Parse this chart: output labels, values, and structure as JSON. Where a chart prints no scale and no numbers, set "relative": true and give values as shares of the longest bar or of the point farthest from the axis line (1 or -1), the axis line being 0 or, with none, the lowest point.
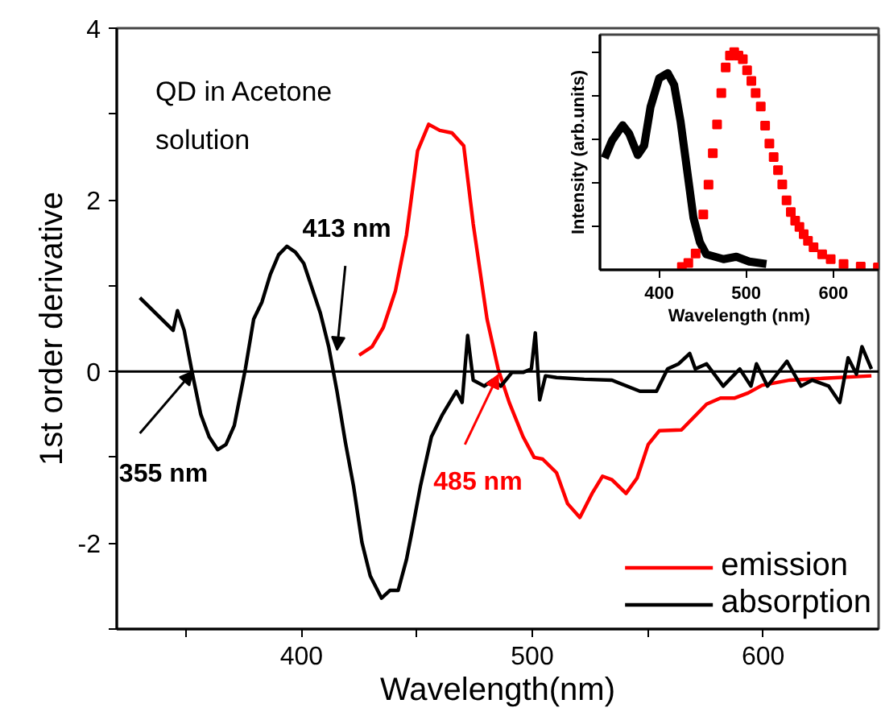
{
  "chart_data": [
    {
      "type": "line",
      "xlabel": "Wavelength(nm)",
      "ylabel": "1st order derivative",
      "xlim": [
        320,
        650
      ],
      "ylim": [
        -3,
        4
      ],
      "xticks": [
        {
          "value": 350,
          "label": null
        },
        400,
        {
          "value": 450,
          "label": null
        },
        500,
        {
          "value": 550,
          "label": null
        },
        600
      ],
      "yticks": [
        {
          "value": -3,
          "label": null
        },
        -2,
        {
          "value": -1,
          "label": null
        },
        0,
        {
          "value": 1,
          "label": null
        },
        2,
        {
          "value": 3,
          "label": null
        },
        4
      ],
      "grid": false,
      "legend": "bottom right",
      "ref_lines": [
        {
          "axis": "y",
          "value": 0,
          "color": "#000000"
        }
      ],
      "annotations": [
        "QD in Acetone\nsolution",
        {
          "text": "355 nm",
          "x": 353,
          "y": 0
        },
        {
          "text": "413 nm",
          "x": 415.4,
          "y": 0.25
        },
        {
          "text": "485 nm",
          "x": 485.2,
          "y": -0.04
        }
      ],
      "series": [
        {
          "name": "emission",
          "color": "#ff0000",
          "x": [
            425.0,
            430.6,
            435.4,
            440.7,
            445.5,
            450.3,
            455.1,
            459.9,
            465.2,
            470.3,
            474.4,
            480.4,
            485.2,
            490.0,
            496.0,
            500.8,
            504.5,
            510.5,
            515.3,
            520.6,
            526.1,
            530.4,
            534.5,
            540.6,
            545.4,
            550.2,
            555.0,
            564.6,
            575.5,
            581.5,
            587.5,
            593.5,
            599.5,
            611.6,
            626.0,
            646.9
          ],
          "values": [
            0.19,
            0.29,
            0.51,
            0.94,
            1.59,
            2.57,
            2.88,
            2.81,
            2.78,
            2.63,
            1.72,
            0.61,
            0.03,
            -0.36,
            -0.76,
            -1.0,
            -1.02,
            -1.18,
            -1.54,
            -1.7,
            -1.41,
            -1.22,
            -1.26,
            -1.42,
            -1.24,
            -0.85,
            -0.69,
            -0.68,
            -0.38,
            -0.31,
            -0.31,
            -0.25,
            -0.16,
            -0.1,
            -0.08,
            -0.05
          ]
        },
        {
          "name": "absorption",
          "color": "#000000",
          "x": [
            330.0,
            344.4,
            346.3,
            349.2,
            352.8,
            356.4,
            360.0,
            363.7,
            367.3,
            370.9,
            375.7,
            379.3,
            382.9,
            386.5,
            390.1,
            393.7,
            397.4,
            401.0,
            404.6,
            408.2,
            411.8,
            415.4,
            419.0,
            422.6,
            426.2,
            429.8,
            434.7,
            438.3,
            441.9,
            445.5,
            447.9,
            451.5,
            456.3,
            461.1,
            467.1,
            469.6,
            472.0,
            474.4,
            479.2,
            482.8,
            486.4,
            491.2,
            496.0,
            499.6,
            501.3,
            503.2,
            505.7,
            510.5,
            522.5,
            534.5,
            546.6,
            553.8,
            558.6,
            563.4,
            568.2,
            570.6,
            575.5,
            582.7,
            589.9,
            594.7,
            597.1,
            601.9,
            610.3,
            616.4,
            621.2,
            628.4,
            633.2,
            636.8,
            640.4,
            642.8,
            646.9
          ],
          "values": [
            0.86,
            0.48,
            0.71,
            0.48,
            -0.03,
            -0.5,
            -0.76,
            -0.91,
            -0.85,
            -0.63,
            0.03,
            0.61,
            0.81,
            1.13,
            1.36,
            1.46,
            1.39,
            1.26,
            0.97,
            0.68,
            0.29,
            -0.23,
            -0.82,
            -1.34,
            -1.99,
            -2.38,
            -2.64,
            -2.55,
            -2.55,
            -2.19,
            -1.86,
            -1.34,
            -0.76,
            -0.5,
            -0.23,
            -0.36,
            0.42,
            -0.1,
            -0.17,
            -0.1,
            -0.17,
            -0.01,
            -0.01,
            0.03,
            0.45,
            -0.33,
            -0.05,
            -0.07,
            -0.09,
            -0.1,
            -0.23,
            -0.23,
            0.03,
            0.09,
            0.21,
            0.03,
            0.09,
            -0.17,
            0.03,
            -0.17,
            0.09,
            -0.17,
            0.12,
            -0.17,
            -0.1,
            -0.17,
            -0.36,
            0.16,
            -0.03,
            0.29,
            0.03
          ]
        }
      ]
    },
    {
      "type": "line",
      "relative": true,
      "xlabel": "Wavelength (nm)",
      "ylabel": "Intensity (arb.units)",
      "xlim": [
        332,
        652
      ],
      "xticks": [
        400,
        500,
        600
      ],
      "tick_labels": "x",
      "grid": false,
      "series": [
        {
          "color": "#000000",
          "x": [
            337.4,
            345.8,
            358.1,
            365.5,
            375.4,
            382.8,
            390.1,
            400.0,
            409.9,
            417.2,
            424.6,
            432.0,
            439.4,
            446.8,
            454.2,
            473.9,
            488.7,
            503.4,
            523.2
          ],
          "values": [
            0.513,
            0.593,
            0.664,
            0.626,
            0.527,
            0.571,
            0.748,
            0.88,
            0.903,
            0.849,
            0.681,
            0.46,
            0.239,
            0.126,
            0.071,
            0.049,
            0.06,
            0.038,
            0.027
          ]
        },
        {
          "type": "scatter",
          "marker": "square",
          "color": "#ff0000",
          "x": [
            426.1,
            433.5,
            441.9,
            450.7,
            456.7,
            461.6,
            466.5,
            471.4,
            476.4,
            481.3,
            486.2,
            491.1,
            496.1,
            501.0,
            505.9,
            510.8,
            516.7,
            521.7,
            526.6,
            531.5,
            536.5,
            541.4,
            546.3,
            551.2,
            556.2,
            561.1,
            566.0,
            570.9,
            577.3,
            587.2,
            597.0,
            611.8,
            631.5,
            651.2
          ],
          "values": [
            0.013,
            0.031,
            0.075,
            0.254,
            0.391,
            0.535,
            0.668,
            0.812,
            0.929,
            0.984,
            1.0,
            0.984,
            0.967,
            0.916,
            0.867,
            0.812,
            0.75,
            0.662,
            0.58,
            0.518,
            0.458,
            0.392,
            0.319,
            0.265,
            0.226,
            0.197,
            0.164,
            0.133,
            0.104,
            0.071,
            0.049,
            0.027,
            0.015,
            0.011
          ]
        }
      ]
    }
  ]
}
